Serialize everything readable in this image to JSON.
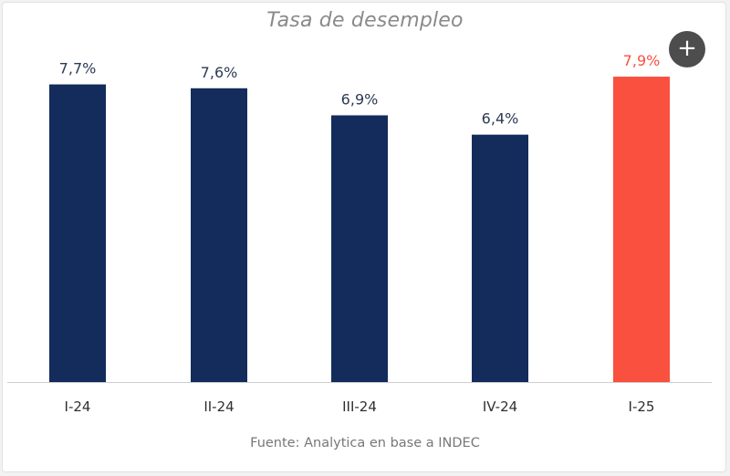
{
  "chart_data": {
    "type": "bar",
    "title": "Tasa de desempleo",
    "categories": [
      "I-24",
      "II-24",
      "III-24",
      "IV-24",
      "I-25"
    ],
    "values": [
      7.7,
      7.6,
      6.9,
      6.4,
      7.9
    ],
    "value_labels": [
      "7,7%",
      "7,6%",
      "6,9%",
      "6,4%",
      "7,9%"
    ],
    "ylim": [
      0,
      9.6
    ],
    "xlabel": "",
    "ylabel": "",
    "grid": false,
    "legend": "none",
    "colors": {
      "default": "#132c5b",
      "highlight": "#f9503f",
      "default_label": "#2e3a55",
      "highlight_label": "#f9503f",
      "axis": "#cfcfcf"
    },
    "highlight_index": 4,
    "source": "Fuente: Analytica en base a INDEC"
  },
  "controls": {
    "expand_icon": "plus-icon",
    "expand_symbol": "+"
  }
}
